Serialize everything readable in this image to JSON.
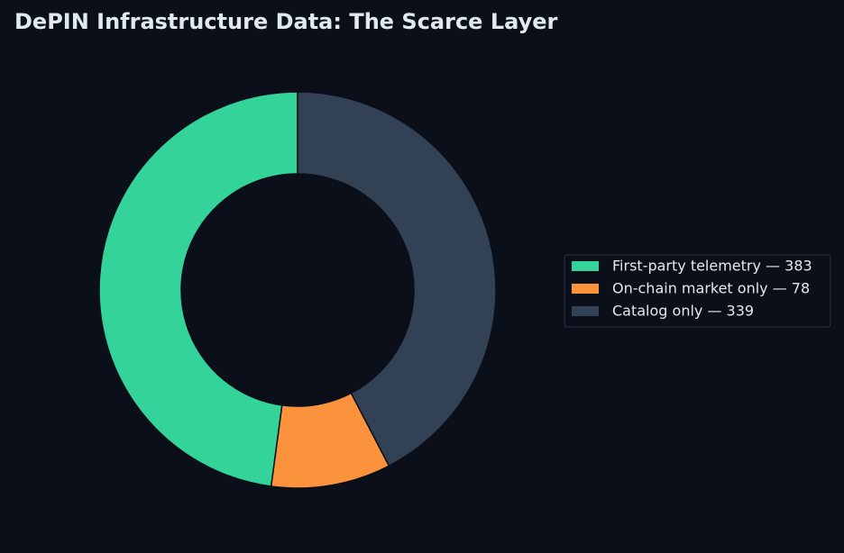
{
  "chart_data": {
    "type": "donut",
    "title": "DePIN Infrastructure Data: The Scarce Layer",
    "categories": [
      "First-party telemetry — 383",
      "On-chain market only — 78",
      "Catalog only — 339"
    ],
    "values": [
      383,
      78,
      339
    ],
    "colors": [
      "#34d399",
      "#fb923c",
      "#334155"
    ],
    "legend": "right"
  }
}
